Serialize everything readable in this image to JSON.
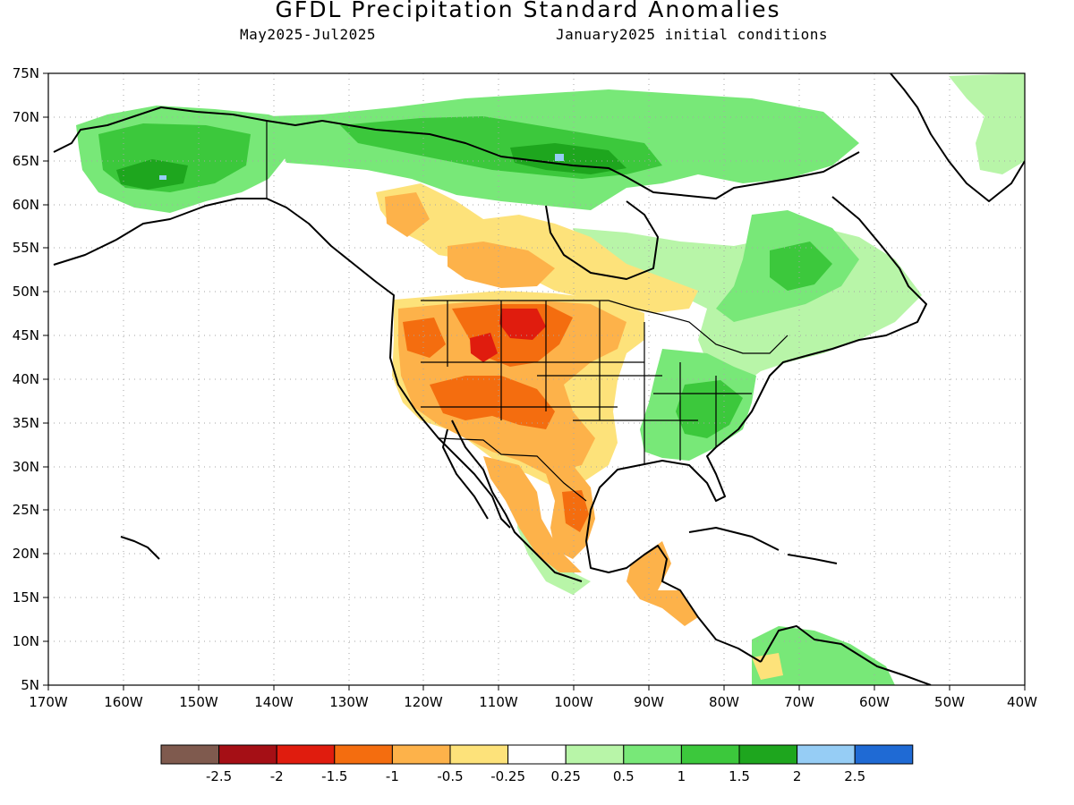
{
  "header": {
    "title": "GFDL Precipitation Standard Anomalies",
    "period": "May2025-Jul2025",
    "initial_conditions": "January2025 initial conditions"
  },
  "map": {
    "lat_labels": [
      "75N",
      "70N",
      "65N",
      "60N",
      "55N",
      "50N",
      "45N",
      "40N",
      "35N",
      "30N",
      "25N",
      "20N",
      "15N",
      "10N",
      "5N"
    ],
    "lon_labels": [
      "170W",
      "160W",
      "150W",
      "140W",
      "130W",
      "120W",
      "110W",
      "100W",
      "90W",
      "80W",
      "70W",
      "60W",
      "50W",
      "40W"
    ],
    "land_color": "#ffffff",
    "grid": "dotted"
  },
  "legend": {
    "colors": [
      "#7f5a4e",
      "#a50f15",
      "#e01c0e",
      "#f46d0f",
      "#fdb24a",
      "#fde27a",
      "#ffffff",
      "#b8f5a8",
      "#78e878",
      "#3cc83c",
      "#1ea61e",
      "#96cdf5",
      "#1f6ad4"
    ],
    "labels": [
      "-2.5",
      "-2",
      "-1.5",
      "-1",
      "-0.5",
      "-0.25",
      "0.25",
      "0.5",
      "1",
      "1.5",
      "2",
      "2.5"
    ]
  },
  "anomaly_regions": [
    {
      "name": "alaska-wet",
      "level": 1.5
    },
    {
      "name": "northern-canada-wet",
      "level": 1
    },
    {
      "name": "eastern-canada-wet",
      "level": 0.5
    },
    {
      "name": "southeast-us-wet",
      "level": 1
    },
    {
      "name": "greenland-wet",
      "level": 0.5
    },
    {
      "name": "western-canada-dry",
      "level": -0.5
    },
    {
      "name": "northern-plains-dry",
      "level": -1
    },
    {
      "name": "montana-dakotas-core",
      "level": -1.5
    },
    {
      "name": "southwest-us-dry",
      "level": -1
    },
    {
      "name": "four-corners-core",
      "level": -1.5
    },
    {
      "name": "texas-gulf-dry",
      "level": -1
    },
    {
      "name": "mexico-dry",
      "level": -0.5
    },
    {
      "name": "central-america-dry",
      "level": -0.5
    }
  ]
}
